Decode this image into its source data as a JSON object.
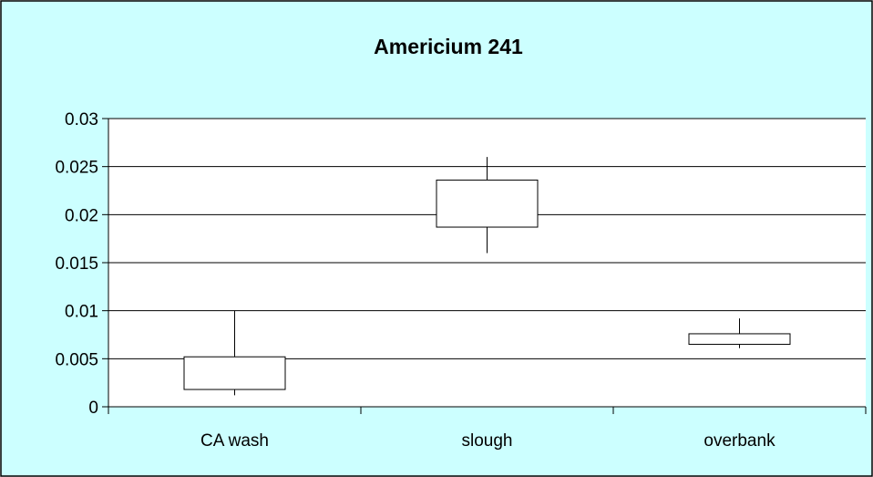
{
  "colors": {
    "background": "#ccffff",
    "plot_area": "#ffffff",
    "border": "#000000",
    "gridline": "#000000",
    "box_fill": "#ffffff",
    "box_stroke": "#000000"
  },
  "chart_data": {
    "type": "boxplot",
    "title": "Americium 241",
    "xlabel": "",
    "ylabel": "",
    "categories": [
      "CA wash",
      "slough",
      "overbank"
    ],
    "ylim": [
      0,
      0.03
    ],
    "yticks": [
      0,
      0.005,
      0.01,
      0.015,
      0.02,
      0.025,
      0.03
    ],
    "ytick_labels": [
      "0",
      "0.005",
      "0.01",
      "0.015",
      "0.02",
      "0.025",
      "0.03"
    ],
    "boxes": [
      {
        "category": "CA wash",
        "min": 0.0012,
        "q1": 0.0018,
        "q3": 0.0052,
        "max": 0.01
      },
      {
        "category": "slough",
        "min": 0.016,
        "q1": 0.0187,
        "q3": 0.0236,
        "max": 0.026
      },
      {
        "category": "overbank",
        "min": 0.0061,
        "q1": 0.0065,
        "q3": 0.0076,
        "max": 0.0092
      }
    ],
    "grid": true,
    "legend": "none"
  }
}
